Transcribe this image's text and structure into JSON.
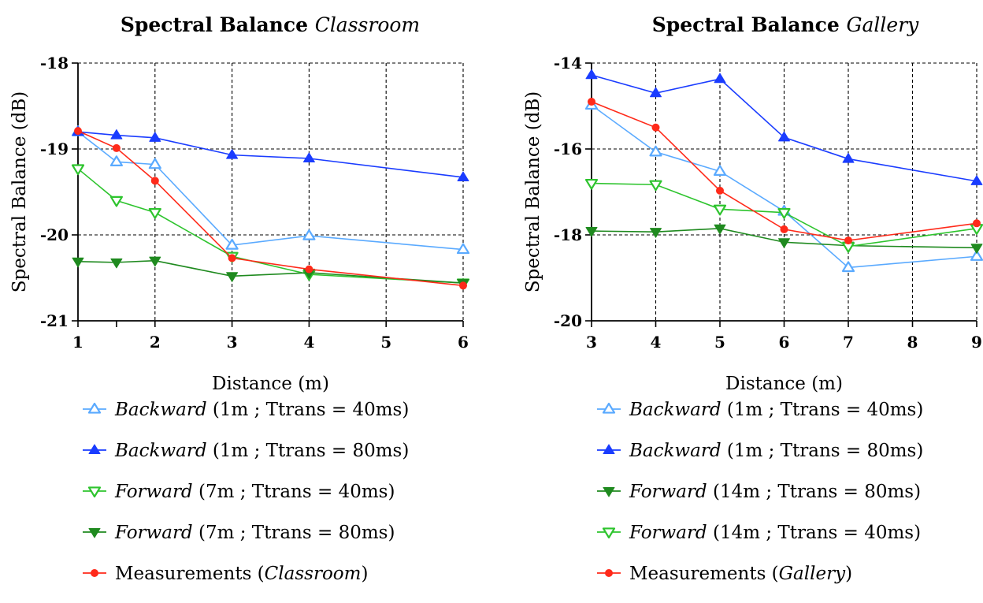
{
  "chart_data": [
    {
      "type": "line",
      "title": "Spectral Balance",
      "subtitle": "Classroom",
      "xlabel": "Distance (m)",
      "ylabel": "Spectral Balance (dB)",
      "xlim": [
        1,
        6
      ],
      "ylim": [
        -21,
        -18
      ],
      "xticks": [
        1,
        2,
        3,
        4,
        5,
        6
      ],
      "yticks": [
        -21,
        -20,
        -19,
        -18
      ],
      "grid": true,
      "legend_position": "bottom",
      "series": [
        {
          "name": "Backward",
          "detail": "(1m ; Ttrans = 40ms)",
          "color": "#5aaaff",
          "marker": "triangle-up-open",
          "x": [
            1,
            1.5,
            2,
            3,
            4,
            6
          ],
          "y": [
            -18.8,
            -19.15,
            -19.18,
            -20.12,
            -20.01,
            -20.17
          ]
        },
        {
          "name": "Backward",
          "detail": "(1m ; Ttrans = 80ms)",
          "color": "#1a3cff",
          "marker": "triangle-up-filled",
          "x": [
            1,
            1.5,
            2,
            3,
            4,
            6
          ],
          "y": [
            -18.8,
            -18.84,
            -18.87,
            -19.07,
            -19.11,
            -19.33
          ]
        },
        {
          "name": "Forward",
          "detail": "  (7m ; Ttrans = 40ms)",
          "color": "#2ec42e",
          "marker": "triangle-down-open",
          "x": [
            1,
            1.5,
            2,
            3,
            4,
            6
          ],
          "y": [
            -19.23,
            -19.6,
            -19.74,
            -20.25,
            -20.46,
            -20.56
          ]
        },
        {
          "name": "Forward",
          "detail": "  (7m ; Ttrans = 80ms)",
          "color": "#1f8a1f",
          "marker": "triangle-down-filled",
          "x": [
            1,
            1.5,
            2,
            3,
            4,
            6
          ],
          "y": [
            -20.31,
            -20.32,
            -20.3,
            -20.48,
            -20.44,
            -20.56
          ]
        },
        {
          "name": "Measurements",
          "detail": "Classroom",
          "color": "#ff2a1a",
          "marker": "circle-filled",
          "x": [
            1,
            1.5,
            2,
            3,
            4,
            6
          ],
          "y": [
            -18.79,
            -18.99,
            -19.37,
            -20.27,
            -20.4,
            -20.59
          ]
        }
      ]
    },
    {
      "type": "line",
      "title": "Spectral Balance",
      "subtitle": "Gallery",
      "xlabel": "Distance (m)",
      "ylabel": "Spectral Balance (dB)",
      "xlim": [
        3,
        9
      ],
      "ylim": [
        -20,
        -14
      ],
      "xticks": [
        3,
        4,
        5,
        6,
        7,
        8,
        9
      ],
      "yticks": [
        -20,
        -18,
        -16,
        -14
      ],
      "grid": true,
      "legend_position": "bottom",
      "series": [
        {
          "name": "Backward",
          "detail": "(1m ; Ttrans = 40ms)",
          "color": "#5aaaff",
          "marker": "triangle-up-open",
          "x": [
            3,
            4,
            5,
            6,
            7,
            9
          ],
          "y": [
            -14.98,
            -16.07,
            -16.52,
            -17.45,
            -18.76,
            -18.5
          ]
        },
        {
          "name": "Backward",
          "detail": "(1m ; Ttrans = 80ms)",
          "color": "#1a3cff",
          "marker": "triangle-up-filled",
          "x": [
            3,
            4,
            5,
            6,
            7,
            9
          ],
          "y": [
            -14.28,
            -14.7,
            -14.37,
            -15.73,
            -16.23,
            -16.75
          ]
        },
        {
          "name": "Forward",
          "detail": "  (14m ; Ttrans = 80ms)",
          "color": "#1f8a1f",
          "marker": "triangle-down-filled",
          "x": [
            3,
            4,
            5,
            6,
            7,
            9
          ],
          "y": [
            -17.91,
            -17.93,
            -17.85,
            -18.17,
            -18.25,
            -18.3
          ]
        },
        {
          "name": "Forward",
          "detail": "  (14m ; Ttrans = 40ms)",
          "color": "#2ec42e",
          "marker": "triangle-down-open",
          "x": [
            3,
            4,
            5,
            6,
            7,
            9
          ],
          "y": [
            -16.8,
            -16.83,
            -17.4,
            -17.48,
            -18.27,
            -17.85
          ]
        },
        {
          "name": "Measurements",
          "detail": "Gallery",
          "color": "#ff2a1a",
          "marker": "circle-filled",
          "x": [
            3,
            4,
            5,
            6,
            7,
            9
          ],
          "y": [
            -14.9,
            -15.5,
            -16.97,
            -17.87,
            -18.13,
            -17.73
          ]
        }
      ]
    }
  ]
}
